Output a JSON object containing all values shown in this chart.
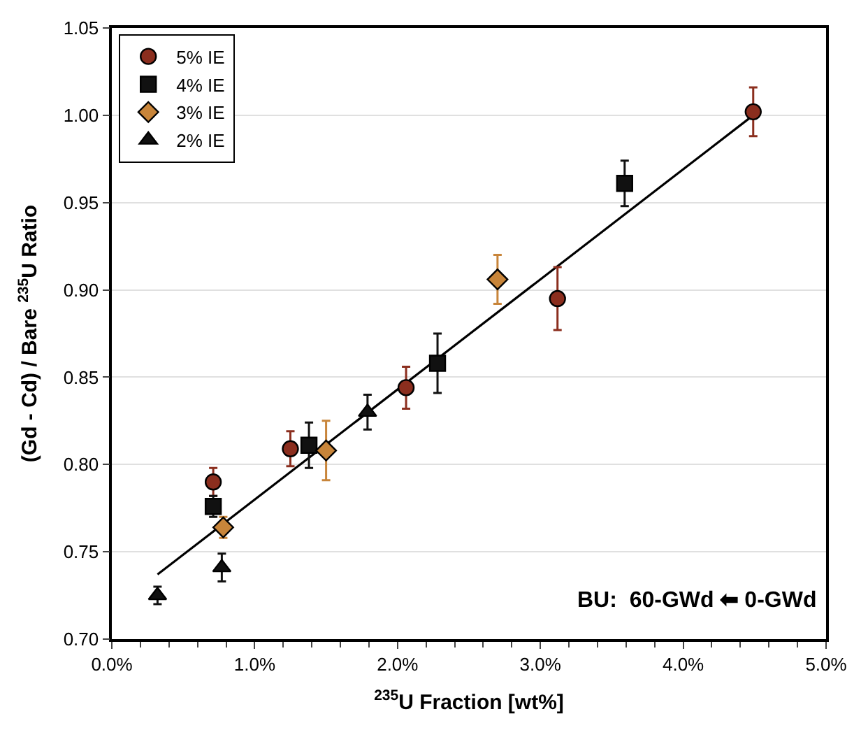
{
  "chart_data": {
    "type": "scatter",
    "xlabel": "$^{235}$U Fraction [wt%]",
    "ylabel": "(Gd - Cd) / Bare $^{235}$U Ratio",
    "xlim": [
      0,
      5
    ],
    "ylim": [
      0.7,
      1.05
    ],
    "xticks": [
      {
        "value": 0,
        "label": "0.0%"
      },
      {
        "value": 1,
        "label": "1.0%"
      },
      {
        "value": 2,
        "label": "2.0%"
      },
      {
        "value": 3,
        "label": "3.0%"
      },
      {
        "value": 4,
        "label": "4.0%"
      },
      {
        "value": 5,
        "label": "5.0%"
      }
    ],
    "yticks": [
      {
        "value": 0.7,
        "label": "0.70"
      },
      {
        "value": 0.75,
        "label": "0.75"
      },
      {
        "value": 0.8,
        "label": "0.80"
      },
      {
        "value": 0.85,
        "label": "0.85"
      },
      {
        "value": 0.9,
        "label": "0.90"
      },
      {
        "value": 0.95,
        "label": "0.95"
      },
      {
        "value": 1.0,
        "label": "1.00"
      },
      {
        "value": 1.05,
        "label": "1.05"
      }
    ],
    "grid": "y",
    "legend": "top left",
    "annotations": [
      "BU:  60-GWd ⬅ 0-GWd"
    ],
    "series": [
      {
        "type": "line",
        "color": "#000000",
        "marker": "none",
        "x": [
          0.32,
          4.49
        ],
        "values": [
          0.737,
          1.0
        ]
      },
      {
        "name": "5% IE",
        "color": "#8b2e1e",
        "marker": "circle",
        "x": [
          0.71,
          1.25,
          2.06,
          3.12,
          4.49
        ],
        "values": [
          0.79,
          0.809,
          0.844,
          0.895,
          1.002
        ],
        "errors": [
          0.008,
          0.01,
          0.012,
          0.018,
          0.014
        ]
      },
      {
        "name": "4% IE",
        "color": "#111111",
        "marker": "square",
        "x": [
          0.71,
          1.38,
          2.28,
          3.59
        ],
        "values": [
          0.776,
          0.811,
          0.858,
          0.961
        ],
        "errors": [
          0.006,
          0.013,
          0.017,
          0.013
        ]
      },
      {
        "name": "3% IE",
        "color": "#c8853a",
        "marker": "diamond",
        "x": [
          0.78,
          1.5,
          2.7
        ],
        "values": [
          0.764,
          0.808,
          0.906
        ],
        "errors": [
          0.006,
          0.017,
          0.014
        ]
      },
      {
        "name": "2% IE",
        "color": "#111111",
        "marker": "triangle",
        "x": [
          0.32,
          0.77,
          1.79
        ],
        "values": [
          0.725,
          0.741,
          0.83
        ],
        "errors": [
          0.005,
          0.008,
          0.01
        ]
      }
    ]
  }
}
